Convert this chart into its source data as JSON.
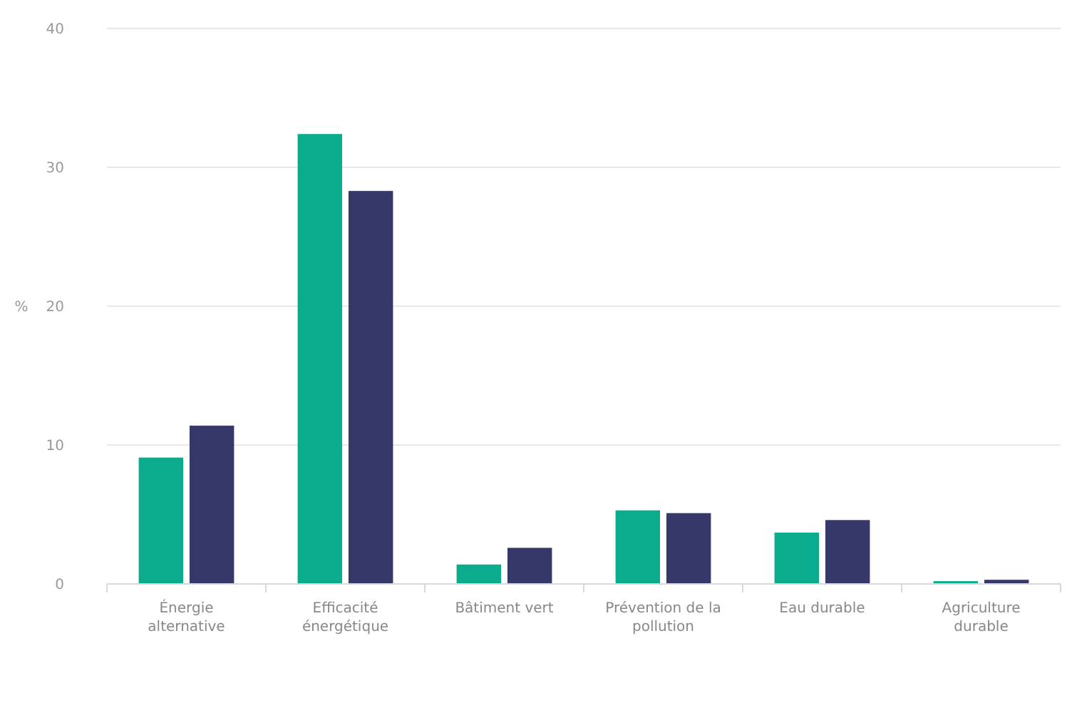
{
  "chart_data": {
    "type": "bar",
    "ylabel": "%",
    "categories": [
      "Énergie alternative",
      "Efficacité énergétique",
      "Bâtiment vert",
      "Prévention de la pollution",
      "Eau durable",
      "Agriculture durable"
    ],
    "series": [
      {
        "color": "#0bab8e",
        "values": [
          9.1,
          32.4,
          1.4,
          5.3,
          3.7,
          0.2
        ]
      },
      {
        "color": "#36386a",
        "values": [
          11.4,
          28.3,
          2.6,
          5.1,
          4.6,
          0.3
        ]
      }
    ],
    "ylim": [
      0,
      40
    ],
    "yticks": [
      0,
      10,
      20,
      30,
      40
    ],
    "grid": "y"
  }
}
